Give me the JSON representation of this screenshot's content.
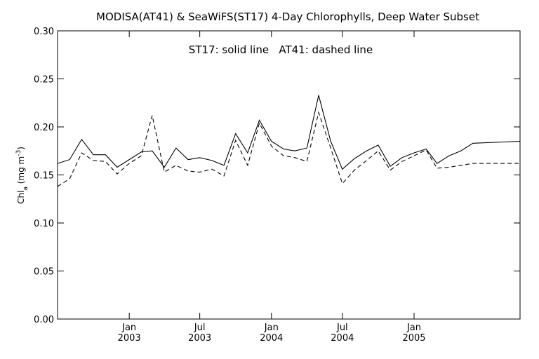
{
  "chart_data": {
    "type": "line",
    "title": "MODISA(AT41) & SeaWiFS(ST17) 4-Day Chlorophylls, Deep Water Subset",
    "annotation": "ST17: solid line   AT41: dashed line",
    "ylabel": {
      "main": "Chl",
      "sub": "a",
      "unit_open": " (mg m",
      "sup": "-3",
      "unit_close": ")"
    },
    "ylim": [
      0,
      0.3
    ],
    "y_ticks": [
      "0.00",
      "0.05",
      "0.10",
      "0.15",
      "0.20",
      "0.25",
      "0.30"
    ],
    "xlim": [
      "2002-07-01",
      "2005-09-30"
    ],
    "x_ticks": [
      {
        "date": "2003-01-01",
        "month": "Jan",
        "year": "2003"
      },
      {
        "date": "2003-07-01",
        "month": "Jul",
        "year": "2003"
      },
      {
        "date": "2004-01-01",
        "month": "Jan",
        "year": "2004"
      },
      {
        "date": "2004-07-01",
        "month": "Jul",
        "year": "2004"
      },
      {
        "date": "2005-01-01",
        "month": "Jan",
        "year": "2005"
      }
    ],
    "grid": false,
    "legend": "none",
    "series": [
      {
        "name": "ST17",
        "style": "solid",
        "color": "#000000",
        "points": [
          [
            "2002-07-01",
            0.162
          ],
          [
            "2002-08-01",
            0.166
          ],
          [
            "2002-09-01",
            0.187
          ],
          [
            "2002-10-01",
            0.171
          ],
          [
            "2002-11-01",
            0.171
          ],
          [
            "2002-12-01",
            0.158
          ],
          [
            "2003-01-01",
            0.166
          ],
          [
            "2003-02-01",
            0.174
          ],
          [
            "2003-03-01",
            0.175
          ],
          [
            "2003-04-01",
            0.158
          ],
          [
            "2003-05-01",
            0.178
          ],
          [
            "2003-06-01",
            0.166
          ],
          [
            "2003-07-01",
            0.168
          ],
          [
            "2003-08-01",
            0.165
          ],
          [
            "2003-09-01",
            0.16
          ],
          [
            "2003-10-01",
            0.193
          ],
          [
            "2003-11-01",
            0.173
          ],
          [
            "2003-12-01",
            0.207
          ],
          [
            "2004-01-01",
            0.185
          ],
          [
            "2004-02-01",
            0.177
          ],
          [
            "2004-03-01",
            0.175
          ],
          [
            "2004-04-01",
            0.178
          ],
          [
            "2004-05-01",
            0.233
          ],
          [
            "2004-06-01",
            0.185
          ],
          [
            "2004-07-01",
            0.156
          ],
          [
            "2004-08-01",
            0.167
          ],
          [
            "2004-09-01",
            0.175
          ],
          [
            "2004-10-01",
            0.181
          ],
          [
            "2004-11-01",
            0.159
          ],
          [
            "2004-12-01",
            0.168
          ],
          [
            "2005-01-01",
            0.173
          ],
          [
            "2005-02-01",
            0.177
          ],
          [
            "2005-03-01",
            0.162
          ],
          [
            "2005-04-01",
            0.17
          ],
          [
            "2005-05-01",
            0.175
          ],
          [
            "2005-06-01",
            0.183
          ],
          [
            "2005-09-30",
            0.185
          ]
        ]
      },
      {
        "name": "AT41",
        "style": "dashed",
        "color": "#000000",
        "points": [
          [
            "2002-07-01",
            0.138
          ],
          [
            "2002-08-01",
            0.146
          ],
          [
            "2002-09-01",
            0.173
          ],
          [
            "2002-10-01",
            0.165
          ],
          [
            "2002-11-01",
            0.164
          ],
          [
            "2002-12-01",
            0.151
          ],
          [
            "2003-01-01",
            0.162
          ],
          [
            "2003-02-01",
            0.17
          ],
          [
            "2003-03-01",
            0.212
          ],
          [
            "2003-04-01",
            0.153
          ],
          [
            "2003-05-01",
            0.16
          ],
          [
            "2003-06-01",
            0.154
          ],
          [
            "2003-07-01",
            0.153
          ],
          [
            "2003-08-01",
            0.156
          ],
          [
            "2003-09-01",
            0.149
          ],
          [
            "2003-10-01",
            0.186
          ],
          [
            "2003-11-01",
            0.16
          ],
          [
            "2003-12-01",
            0.204
          ],
          [
            "2004-01-01",
            0.18
          ],
          [
            "2004-02-01",
            0.17
          ],
          [
            "2004-03-01",
            0.168
          ],
          [
            "2004-04-01",
            0.164
          ],
          [
            "2004-05-01",
            0.215
          ],
          [
            "2004-06-01",
            0.178
          ],
          [
            "2004-07-01",
            0.141
          ],
          [
            "2004-08-01",
            0.155
          ],
          [
            "2004-09-01",
            0.165
          ],
          [
            "2004-10-01",
            0.175
          ],
          [
            "2004-11-01",
            0.155
          ],
          [
            "2004-12-01",
            0.164
          ],
          [
            "2005-01-01",
            0.17
          ],
          [
            "2005-02-01",
            0.176
          ],
          [
            "2005-03-01",
            0.157
          ],
          [
            "2005-04-01",
            0.158
          ],
          [
            "2005-05-01",
            0.16
          ],
          [
            "2005-06-01",
            0.162
          ],
          [
            "2005-09-30",
            0.162
          ]
        ]
      }
    ]
  }
}
